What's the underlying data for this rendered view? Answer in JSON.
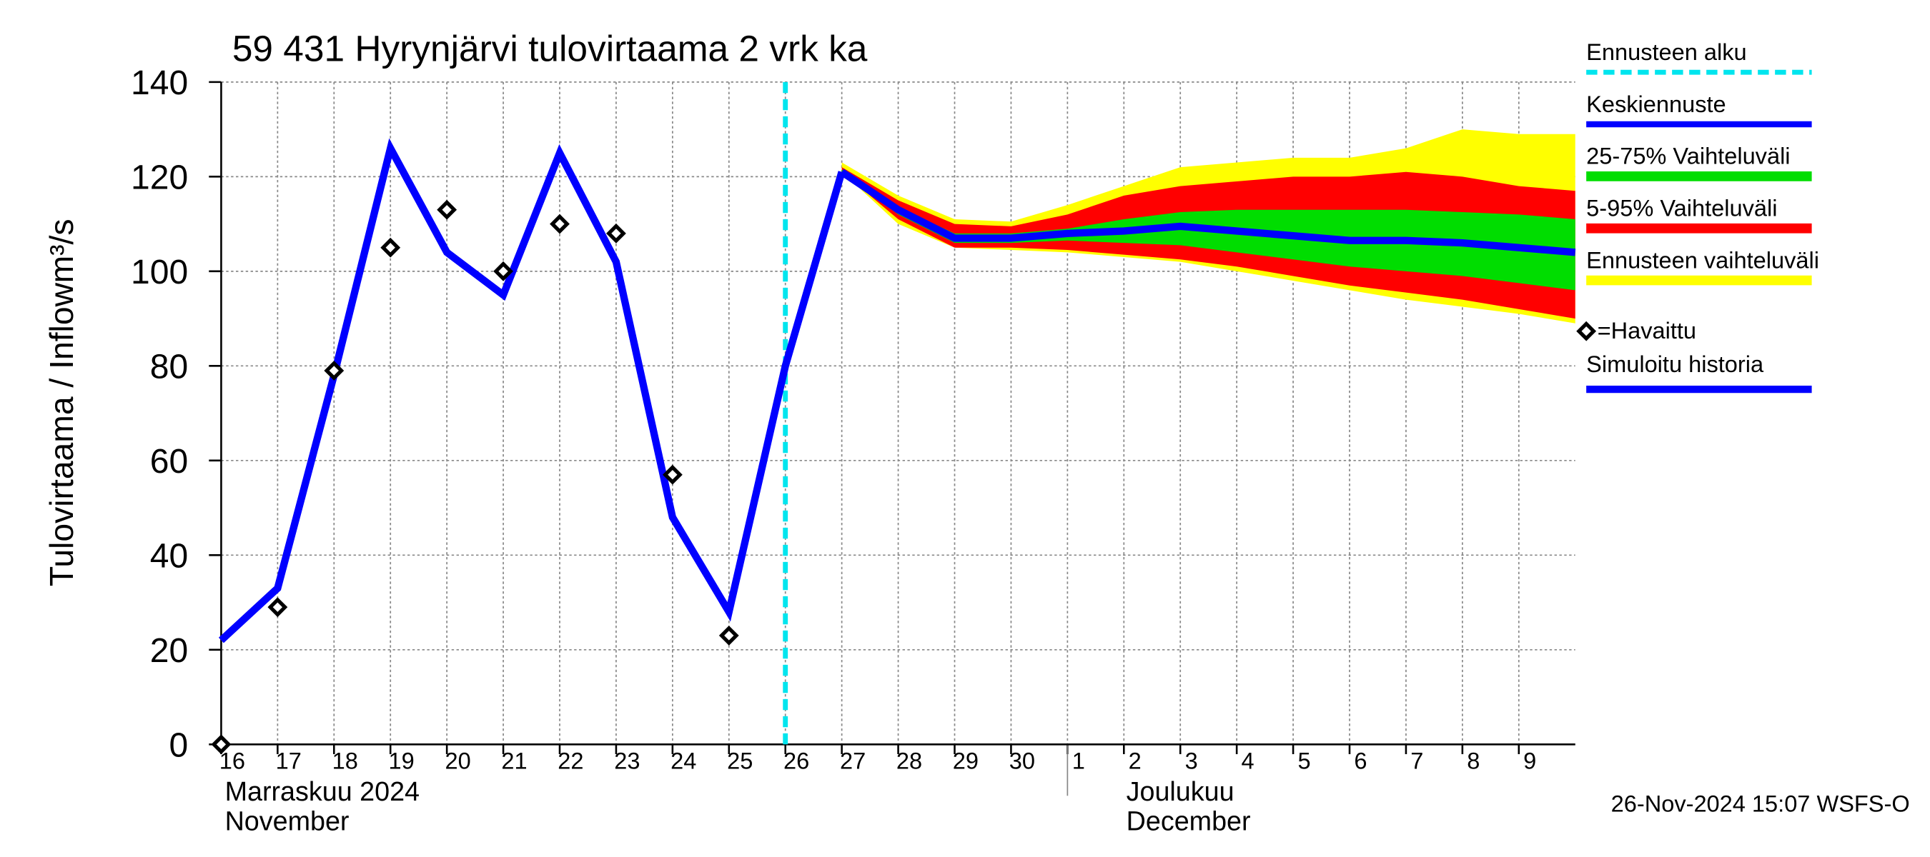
{
  "chart_data": {
    "type": "line",
    "title": "59 431 Hyrynjärvi tulovirtaama 2 vrk ka",
    "ylabel": "Tulovirtaama / Inflow",
    "yunit": "m³/s",
    "ylim": [
      0,
      140
    ],
    "yticks": [
      0,
      20,
      40,
      60,
      80,
      100,
      120,
      140
    ],
    "xlim": [
      0,
      24
    ],
    "xticks": [
      {
        "value": 0,
        "label": "16"
      },
      {
        "value": 1,
        "label": "17"
      },
      {
        "value": 2,
        "label": "18"
      },
      {
        "value": 3,
        "label": "19"
      },
      {
        "value": 4,
        "label": "20"
      },
      {
        "value": 5,
        "label": "21"
      },
      {
        "value": 6,
        "label": "22"
      },
      {
        "value": 7,
        "label": "23"
      },
      {
        "value": 8,
        "label": "24"
      },
      {
        "value": 9,
        "label": "25"
      },
      {
        "value": 10,
        "label": "26"
      },
      {
        "value": 11,
        "label": "27"
      },
      {
        "value": 12,
        "label": "28"
      },
      {
        "value": 13,
        "label": "29"
      },
      {
        "value": 14,
        "label": "30"
      },
      {
        "value": 15,
        "label": "1"
      },
      {
        "value": 16,
        "label": "2"
      },
      {
        "value": 17,
        "label": "3"
      },
      {
        "value": 18,
        "label": "4"
      },
      {
        "value": 19,
        "label": "5"
      },
      {
        "value": 20,
        "label": "6"
      },
      {
        "value": 21,
        "label": "7"
      },
      {
        "value": 22,
        "label": "8"
      },
      {
        "value": 23,
        "label": "9"
      }
    ],
    "month_labels": [
      {
        "value": 0,
        "lines": [
          "Marraskuu 2024",
          "November"
        ]
      },
      {
        "value": 15,
        "lines": [
          "Joulukuu",
          "December"
        ]
      }
    ],
    "grid": true,
    "timestamp": "26-Nov-2024 15:07 WSFS-O",
    "forecast_start": {
      "name": "Ennusteen alku",
      "color": "#00e5ee",
      "x": 10
    },
    "bands": [
      {
        "name": "Ennusteen vaihteluväli",
        "color": "#ffff00",
        "x": [
          11,
          12,
          13,
          14,
          15,
          16,
          17,
          18,
          19,
          20,
          21,
          22,
          23,
          24
        ],
        "upper": [
          123,
          116,
          111,
          110.5,
          114,
          118,
          122,
          123,
          124,
          124,
          126,
          130,
          129,
          129
        ],
        "lower": [
          121,
          110,
          105,
          104.5,
          104,
          103,
          102,
          100,
          98,
          96,
          94,
          92.5,
          91,
          89
        ]
      },
      {
        "name": "5-95% Vaihteluväli",
        "color": "#ff0000",
        "x": [
          11,
          12,
          13,
          14,
          15,
          16,
          17,
          18,
          19,
          20,
          21,
          22,
          23,
          24
        ],
        "upper": [
          122,
          115,
          110,
          109.5,
          112,
          116,
          118,
          119,
          120,
          120,
          121,
          120,
          118,
          117
        ],
        "lower": [
          121,
          111,
          105,
          105,
          104.5,
          103.5,
          102.5,
          101,
          99,
          97,
          95.5,
          94,
          92,
          90
        ]
      },
      {
        "name": "25-75% Vaihteluväli",
        "color": "#00dd00",
        "x": [
          11,
          12,
          13,
          14,
          15,
          16,
          17,
          18,
          19,
          20,
          21,
          22,
          23,
          24
        ],
        "upper": [
          121.5,
          113.5,
          108,
          108,
          109,
          111,
          112.5,
          113,
          113,
          113,
          113,
          112.5,
          112,
          111
        ],
        "lower": [
          121,
          112,
          106,
          106,
          106.5,
          106,
          105.5,
          104,
          102.5,
          101,
          100,
          99,
          97.5,
          96
        ]
      }
    ],
    "series": [
      {
        "name": "Keskiennuste",
        "color": "#0000ff",
        "x": [
          11,
          12,
          13,
          14,
          15,
          16,
          17,
          18,
          19,
          20,
          21,
          22,
          23,
          24
        ],
        "values": [
          121,
          113,
          107,
          107,
          108,
          108.5,
          109.5,
          108.5,
          107.5,
          106.5,
          106.5,
          106,
          105,
          104
        ]
      },
      {
        "name": "Simuloitu historia",
        "color": "#0000ff",
        "x": [
          0,
          1,
          2,
          3,
          4,
          5,
          6,
          7,
          8,
          9,
          10,
          11
        ],
        "values": [
          22,
          33,
          78,
          126,
          104,
          95,
          125,
          102,
          48,
          28,
          80,
          121
        ]
      },
      {
        "name": "=Havaittu",
        "color": "#000000",
        "marker": "diamond",
        "x": [
          0,
          1,
          2,
          3,
          4,
          5,
          6,
          7,
          8,
          9
        ],
        "values": [
          0,
          29,
          79,
          105,
          113,
          100,
          110,
          108,
          57,
          23
        ]
      }
    ]
  }
}
